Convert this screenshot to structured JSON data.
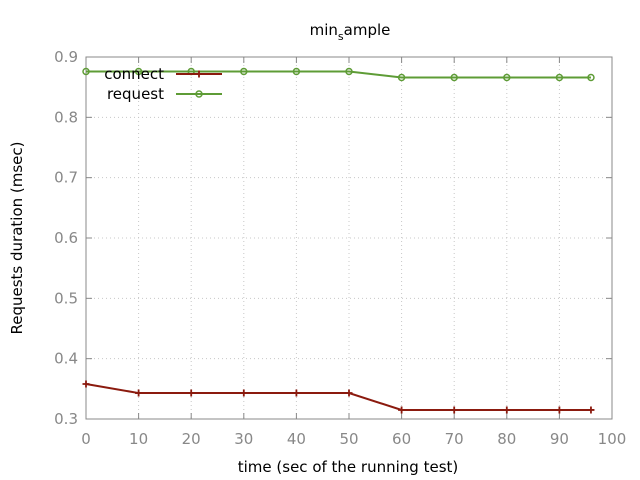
{
  "chart_data": {
    "type": "line",
    "title_base": "min",
    "title_sub": "s",
    "title_rest": "ample",
    "xlabel": "time (sec of the running test)",
    "ylabel": "Requests duration (msec)",
    "xlim": [
      0,
      100
    ],
    "ylim": [
      0.3,
      0.9
    ],
    "xticks": [
      "0",
      "10",
      "20",
      "30",
      "40",
      "50",
      "60",
      "70",
      "80",
      "90",
      "100"
    ],
    "yticks": [
      "0.3",
      "0.4",
      "0.5",
      "0.6",
      "0.7",
      "0.8",
      "0.9"
    ],
    "grid": true,
    "legend_position": "top-left",
    "series": [
      {
        "name": "connect",
        "color": "#8b1a0e",
        "marker": "plus",
        "x": [
          0,
          10,
          20,
          30,
          40,
          50,
          60,
          70,
          80,
          90,
          96
        ],
        "y": [
          0.358,
          0.343,
          0.343,
          0.343,
          0.343,
          0.343,
          0.315,
          0.315,
          0.315,
          0.315,
          0.315
        ]
      },
      {
        "name": "request",
        "color": "#5e9c36",
        "marker": "circle",
        "x": [
          0,
          10,
          20,
          30,
          40,
          50,
          60,
          70,
          80,
          90,
          96
        ],
        "y": [
          0.876,
          0.876,
          0.876,
          0.876,
          0.876,
          0.876,
          0.866,
          0.866,
          0.866,
          0.866,
          0.866
        ]
      }
    ]
  }
}
